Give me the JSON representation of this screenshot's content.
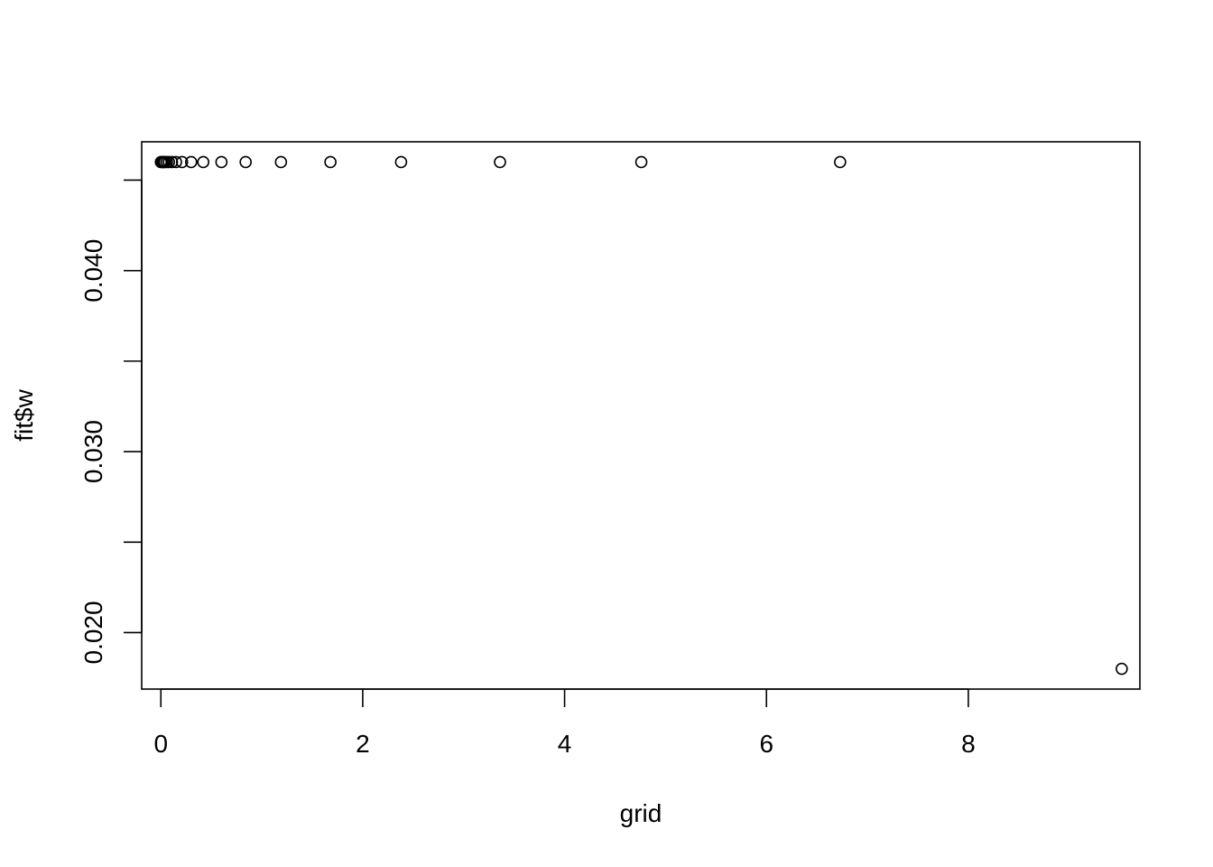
{
  "chart_data": {
    "type": "scatter",
    "title": "",
    "xlabel": "grid",
    "ylabel": "fit$w",
    "xlim": [
      -0.19,
      9.7
    ],
    "ylim": [
      0.01688,
      0.04712
    ],
    "x_ticks": [
      0,
      2,
      4,
      6,
      8
    ],
    "x_tick_labels": [
      "0",
      "2",
      "4",
      "6",
      "8"
    ],
    "y_ticks": [
      0.02,
      0.025,
      0.03,
      0.035,
      0.04,
      0.045
    ],
    "y_tick_labels": [
      "0.020",
      "",
      "0.030",
      "",
      "0.040",
      ""
    ],
    "grid": false,
    "legend": "none",
    "marker": "open-circle",
    "points": [
      {
        "x": 0.0,
        "y": 0.046
      },
      {
        "x": 0.01,
        "y": 0.046
      },
      {
        "x": 0.02,
        "y": 0.046
      },
      {
        "x": 0.03,
        "y": 0.046
      },
      {
        "x": 0.04,
        "y": 0.046
      },
      {
        "x": 0.06,
        "y": 0.046
      },
      {
        "x": 0.08,
        "y": 0.046
      },
      {
        "x": 0.11,
        "y": 0.046
      },
      {
        "x": 0.15,
        "y": 0.046
      },
      {
        "x": 0.21,
        "y": 0.046
      },
      {
        "x": 0.3,
        "y": 0.046
      },
      {
        "x": 0.42,
        "y": 0.046
      },
      {
        "x": 0.6,
        "y": 0.046
      },
      {
        "x": 0.84,
        "y": 0.046
      },
      {
        "x": 1.19,
        "y": 0.046
      },
      {
        "x": 1.68,
        "y": 0.046
      },
      {
        "x": 2.38,
        "y": 0.046
      },
      {
        "x": 3.36,
        "y": 0.046
      },
      {
        "x": 4.76,
        "y": 0.046
      },
      {
        "x": 6.73,
        "y": 0.046
      },
      {
        "x": 9.52,
        "y": 0.018
      }
    ]
  }
}
